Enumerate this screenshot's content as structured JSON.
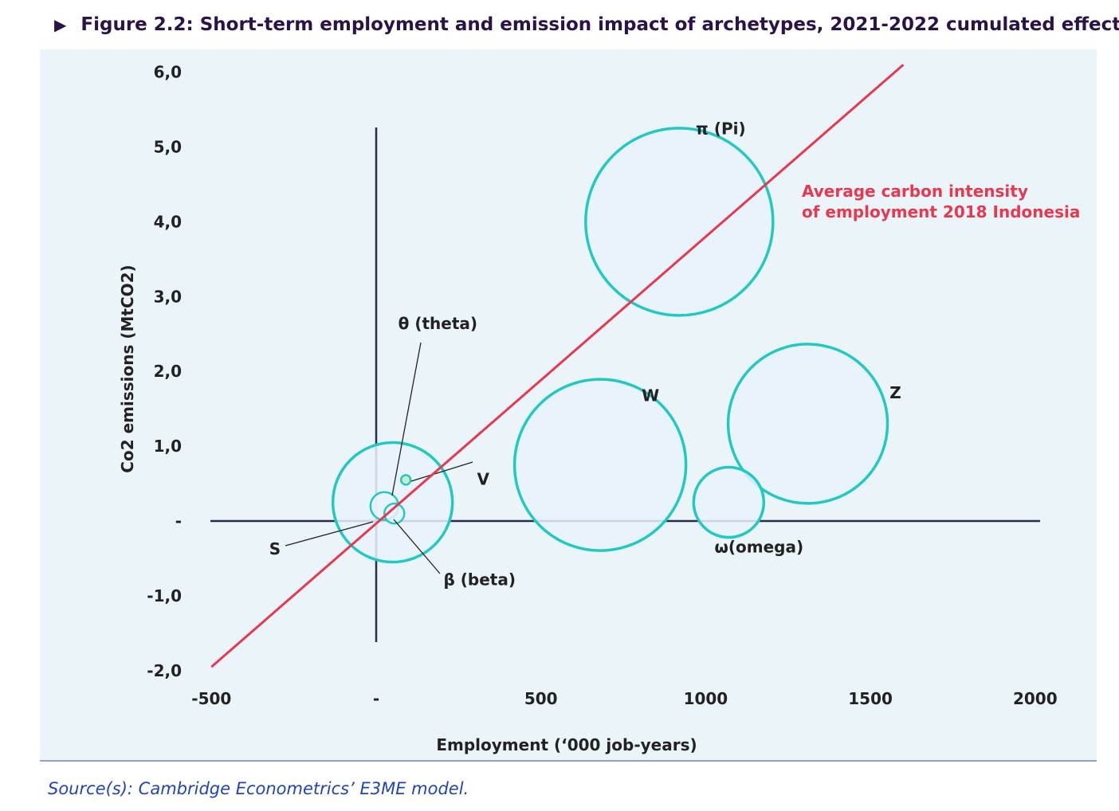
{
  "figure": {
    "arrow": "▶",
    "title": "Figure 2.2: Short-term employment and emission impact of archetypes, 2021-2022 cumulated effect"
  },
  "source": "Source(s): Cambridge Econometrics’ E3ME model.",
  "colors": {
    "panel_bg": "#eaf4f9",
    "bubble_stroke": "#22c9c3",
    "bubble_fill": "#e8f2fb",
    "line": "#e8384f",
    "axis": "#2b2b4a",
    "small_fill": "#c7ecc7"
  },
  "chart_data": {
    "type": "scatter",
    "subtype": "bubble",
    "title": "Figure 2.2: Short-term employment and emission impact of archetypes, 2021-2022 cumulated effect",
    "xlabel": "Employment (‘000 job-years)",
    "ylabel": "Co2 emissions (MtCO2)",
    "xlim": [
      -500,
      2000
    ],
    "ylim": [
      -2.0,
      6.0
    ],
    "x_ticks": [
      -500,
      0,
      500,
      1000,
      1500,
      2000
    ],
    "x_tick_labels": [
      "-500",
      "-",
      "500",
      "1000",
      "1500",
      "2000"
    ],
    "y_ticks": [
      6,
      5,
      4,
      3,
      2,
      1,
      0,
      -1,
      -2
    ],
    "y_tick_labels": [
      "6,0",
      "5,0",
      "4,0",
      "3,0",
      "2,0",
      "1,0",
      "-",
      "-1,0",
      "-2,0"
    ],
    "series": [
      {
        "name": "π (Pi)",
        "x": 920,
        "y": 4.0,
        "size": 235
      },
      {
        "name": "W",
        "x": 680,
        "y": 0.75,
        "size": 215
      },
      {
        "name": "Z",
        "x": 1310,
        "y": 1.3,
        "size": 200
      },
      {
        "name": "ω(omega)",
        "x": 1070,
        "y": 0.25,
        "size": 88
      },
      {
        "name": "large cluster bubble",
        "x": 50,
        "y": 0.25,
        "size": 150
      },
      {
        "name": "θ (theta)",
        "x": 25,
        "y": 0.2,
        "size": 35
      },
      {
        "name": "β (beta)",
        "x": 55,
        "y": 0.1,
        "size": 25
      },
      {
        "name": "V",
        "x": 90,
        "y": 0.55,
        "size": 12
      },
      {
        "name": "S",
        "x": 0,
        "y": 0.0,
        "size": 0
      }
    ],
    "reference_line": {
      "label_line1": "Average carbon intensity",
      "label_line2": "of employment 2018 Indonesia",
      "from": [
        -500,
        -1.95
      ],
      "to": [
        1600,
        6.1
      ]
    }
  }
}
